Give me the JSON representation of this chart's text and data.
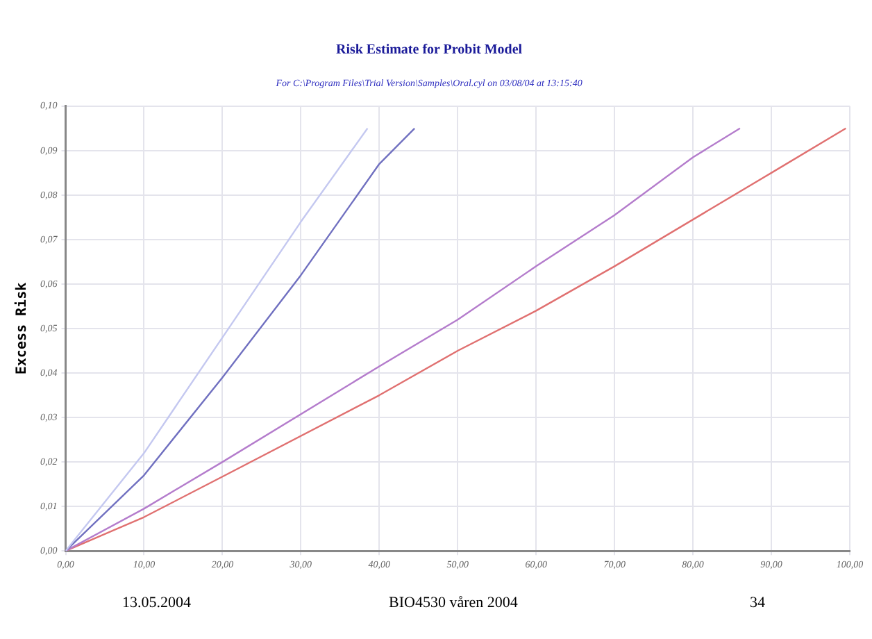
{
  "chart_data": {
    "type": "line",
    "title": "Risk Estimate for Probit Model",
    "subtitle": "For C:\\Program Files\\Trial Version\\Samples\\Oral.cyl on 03/08/04 at 13:15:40",
    "ylabel": "Excess Risk",
    "xlim": [
      0,
      100
    ],
    "xticks": [
      {
        "value": 0,
        "label": "0,00"
      },
      {
        "value": 10,
        "label": "10,00"
      },
      {
        "value": 20,
        "label": "20,00"
      },
      {
        "value": 30,
        "label": "30,00"
      },
      {
        "value": 40,
        "label": "40,00"
      },
      {
        "value": 50,
        "label": "50,00"
      },
      {
        "value": 60,
        "label": "60,00"
      },
      {
        "value": 70,
        "label": "70,00"
      },
      {
        "value": 80,
        "label": "80,00"
      },
      {
        "value": 90,
        "label": "90,00"
      },
      {
        "value": 100,
        "label": "100,00"
      }
    ],
    "ylim": [
      0,
      0.1
    ],
    "yticks": [
      {
        "value": 0,
        "label": "0,00"
      },
      {
        "value": 0.01,
        "label": "0,01"
      },
      {
        "value": 0.02,
        "label": "0,02"
      },
      {
        "value": 0.03,
        "label": "0,03"
      },
      {
        "value": 0.04,
        "label": "0,04"
      },
      {
        "value": 0.05,
        "label": "0,05"
      },
      {
        "value": 0.06,
        "label": "0,06"
      },
      {
        "value": 0.07,
        "label": "0,07"
      },
      {
        "value": 0.08,
        "label": "0,08"
      },
      {
        "value": 0.09,
        "label": "0,09"
      },
      {
        "value": 0.1,
        "label": "0,10"
      }
    ],
    "grid": true,
    "marker": "none",
    "series": [
      {
        "color": "#c4c8f0",
        "x": [
          0,
          10,
          20,
          30,
          38.5
        ],
        "values": [
          0,
          0.022,
          0.048,
          0.074,
          0.095
        ]
      },
      {
        "color": "#7070c0",
        "x": [
          0,
          10,
          20,
          30,
          40,
          44.5
        ],
        "values": [
          0,
          0.017,
          0.039,
          0.062,
          0.087,
          0.095
        ]
      },
      {
        "color": "#b47ccc",
        "x": [
          0,
          10,
          20,
          40,
          50,
          60,
          70,
          80,
          86
        ],
        "values": [
          0,
          0.0095,
          0.02,
          0.0415,
          0.052,
          0.064,
          0.0755,
          0.0885,
          0.095
        ]
      },
      {
        "color": "#e07070",
        "x": [
          0,
          10,
          20,
          40,
          50,
          60,
          70,
          80,
          90,
          99.5
        ],
        "values": [
          0,
          0.0076,
          0.0167,
          0.035,
          0.045,
          0.054,
          0.064,
          0.0745,
          0.085,
          0.095
        ]
      }
    ],
    "annotations": [
      "13.05.2004",
      "BIO4530 våren 2004",
      "34"
    ]
  }
}
